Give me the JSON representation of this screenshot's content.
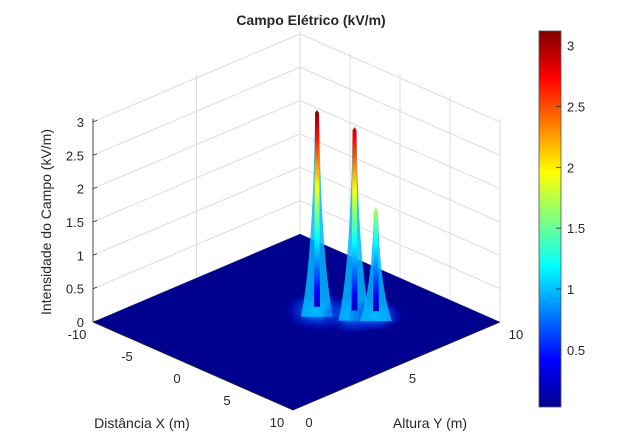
{
  "chart_data": {
    "type": "surface",
    "title": "Campo Elétrico (kV/m)",
    "xlabel": "Distância X (m)",
    "ylabel": "Altura Y (m)",
    "zlabel": "Intensidade do Campo (kV/m)",
    "xlim": [
      -10,
      10
    ],
    "ylim": [
      0,
      10
    ],
    "zlim": [
      0,
      3.05
    ],
    "xticks": [
      "-10",
      "-5",
      "0",
      "5",
      "10"
    ],
    "yticks": [
      "0",
      "5",
      "10"
    ],
    "zticks": [
      "0",
      "0.5",
      "1",
      "1.5",
      "2",
      "2.5",
      "3"
    ],
    "grid": true,
    "colormap": "jet",
    "colorbar": {
      "range": [
        0.03,
        3.12
      ],
      "ticks": [
        "0.5",
        "1",
        "1.5",
        "2",
        "2.5",
        "3"
      ],
      "placement": "right"
    },
    "peaks": [
      {
        "x": 0.4,
        "y": 5.8,
        "z": 3.1
      },
      {
        "x": 2.7,
        "y": 6.5,
        "z": 2.9
      },
      {
        "x": 3.8,
        "y": 7.0,
        "z": 1.7
      }
    ],
    "floor_color": "#00008f"
  }
}
